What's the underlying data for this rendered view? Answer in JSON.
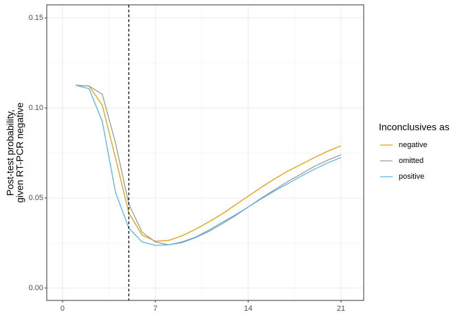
{
  "chart_data": {
    "type": "line",
    "ylabel": [
      "Post-test probability,",
      "given RT-PCR negative"
    ],
    "legend_title": "Inconclusives as",
    "legend_position": "right",
    "grid": true,
    "x": [
      1,
      2,
      3,
      4,
      5,
      6,
      7,
      8,
      9,
      10,
      11,
      12,
      13,
      14,
      15,
      16,
      17,
      18,
      19,
      20,
      21
    ],
    "series": [
      {
        "name": "negative",
        "color": "#E69F00",
        "values": [
          0.1126,
          0.1122,
          0.1015,
          0.072,
          0.0416,
          0.0294,
          0.026,
          0.0264,
          0.029,
          0.0325,
          0.0366,
          0.041,
          0.046,
          0.051,
          0.056,
          0.0607,
          0.065,
          0.0687,
          0.0725,
          0.076,
          0.079
        ]
      },
      {
        "name": "omitted",
        "color": "#999999",
        "values": [
          0.1126,
          0.1122,
          0.1076,
          0.0805,
          0.0466,
          0.031,
          0.0256,
          0.024,
          0.0252,
          0.0279,
          0.0313,
          0.0355,
          0.04,
          0.045,
          0.05,
          0.0546,
          0.0592,
          0.0634,
          0.0676,
          0.071,
          0.074
        ]
      },
      {
        "name": "positive",
        "color": "#56B4E9",
        "values": [
          0.1126,
          0.1107,
          0.0924,
          0.053,
          0.0332,
          0.0256,
          0.0237,
          0.024,
          0.0256,
          0.0282,
          0.032,
          0.0363,
          0.0405,
          0.045,
          0.0496,
          0.054,
          0.058,
          0.0622,
          0.066,
          0.0695,
          0.0725
        ]
      }
    ],
    "vline_x": 5,
    "xlim": [
      -1.19,
      22.71
    ],
    "xticks": [
      0,
      7,
      14,
      21
    ],
    "ylim": [
      -0.0069,
      0.1573
    ],
    "yticks": [
      {
        "value": 0,
        "label": "0.00"
      },
      {
        "value": 0.05,
        "label": "0.05"
      },
      {
        "value": 0.1,
        "label": "0.10"
      },
      {
        "value": 0.15,
        "label": "0.15"
      }
    ]
  }
}
